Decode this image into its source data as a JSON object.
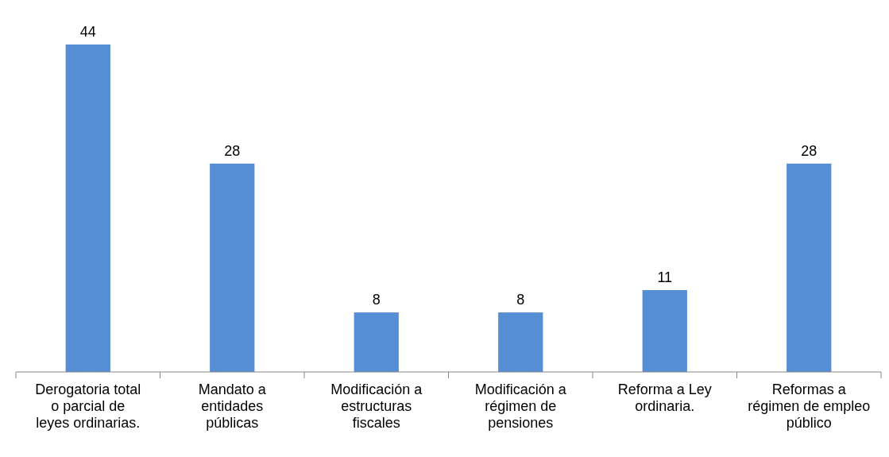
{
  "chart_data": {
    "type": "bar",
    "categories": [
      "Derogatoria total o parcial de leyes ordinarias.",
      "Mandato a entidades públicas",
      "Modificación a estructuras fiscales",
      "Modificación a régimen de pensiones",
      "Reforma a Ley ordinaria.",
      "Reformas a régimen de empleo público"
    ],
    "values": [
      44,
      28,
      8,
      8,
      11,
      28
    ],
    "color": "#558ed5",
    "data_labels": true
  }
}
